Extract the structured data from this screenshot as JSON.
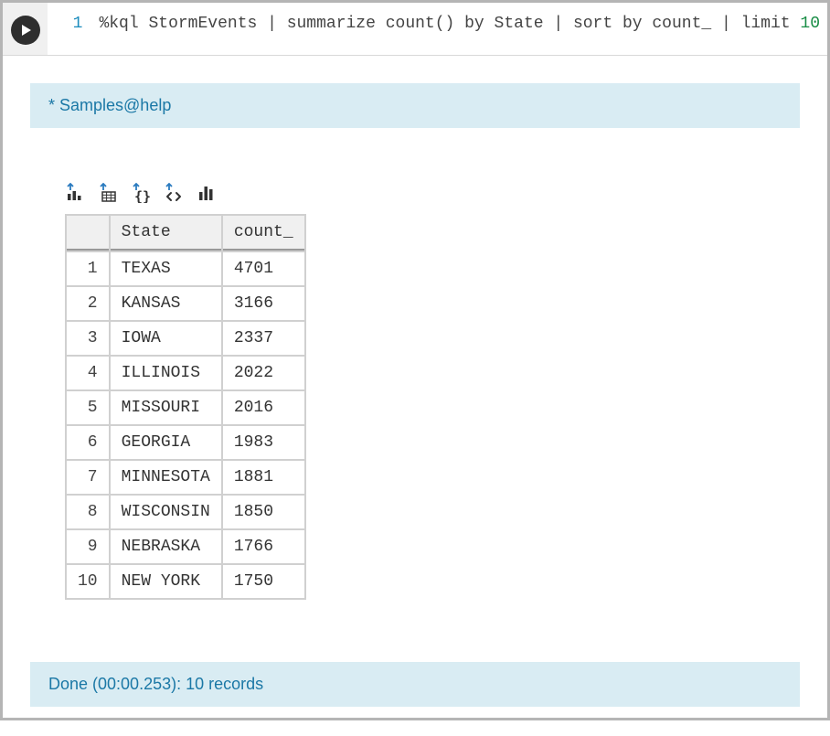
{
  "code": {
    "line_number": "1",
    "tokens": {
      "magic": "%kql",
      "body": " StormEvents | summarize count() by State | sort by count_ | limit ",
      "limit_n": "10"
    }
  },
  "banner": {
    "text": "* Samples@help"
  },
  "status": {
    "text": "Done (00:00.253): 10 records"
  },
  "table": {
    "columns": [
      "State",
      "count_"
    ],
    "rows": [
      {
        "n": "1",
        "state": "TEXAS",
        "count": "4701"
      },
      {
        "n": "2",
        "state": "KANSAS",
        "count": "3166"
      },
      {
        "n": "3",
        "state": "IOWA",
        "count": "2337"
      },
      {
        "n": "4",
        "state": "ILLINOIS",
        "count": "2022"
      },
      {
        "n": "5",
        "state": "MISSOURI",
        "count": "2016"
      },
      {
        "n": "6",
        "state": "GEORGIA",
        "count": "1983"
      },
      {
        "n": "7",
        "state": "MINNESOTA",
        "count": "1881"
      },
      {
        "n": "8",
        "state": "WISCONSIN",
        "count": "1850"
      },
      {
        "n": "9",
        "state": "NEBRASKA",
        "count": "1766"
      },
      {
        "n": "10",
        "state": "NEW YORK",
        "count": "1750"
      }
    ]
  },
  "colors": {
    "banner_bg": "#d9ecf3",
    "banner_fg": "#1b78a6",
    "play_bg": "#2e2e2e",
    "border": "#b5b5b5"
  }
}
